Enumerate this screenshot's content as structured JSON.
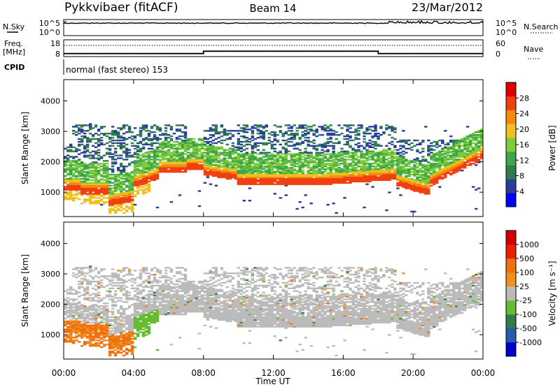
{
  "header": {
    "station": "Pykkvibaer (fitACF)",
    "beam": "Beam 14",
    "date": "23/Mar/2012"
  },
  "noise_panel": {
    "left_label": "N.Sky",
    "right_label": "N.Search",
    "left_ticks": [
      "10^5",
      "10^0"
    ],
    "right_ticks": [
      "10^5",
      "10^0"
    ]
  },
  "freq_panel": {
    "left_label_line1": "Freq.",
    "left_label_line2": "[MHz]",
    "right_label": "Nave",
    "left_ticks": [
      "18",
      "8"
    ],
    "right_ticks": [
      "60",
      "0"
    ],
    "freq_ylim": [
      8,
      18
    ],
    "nave_ylim": [
      0,
      60
    ],
    "freq_steps": [
      {
        "t0": 0,
        "t1": 8,
        "mhz": 9.8
      },
      {
        "t0": 8,
        "t1": 18,
        "mhz": 11.2
      },
      {
        "t0": 18,
        "t1": 24,
        "mhz": 9.8
      }
    ],
    "nave_level": 40
  },
  "cpid": {
    "label": "CPID",
    "text": "normal (fast stereo) 153"
  },
  "chart_data": [
    {
      "type": "heatmap",
      "name": "power",
      "xlabel": "",
      "ylabel": "Slant Range [km]",
      "xlim": [
        0,
        24
      ],
      "ylim": [
        200,
        4700
      ],
      "y_ticks": [
        "1000",
        "2000",
        "3000",
        "4000"
      ],
      "y_tick_values": [
        1000,
        2000,
        3000,
        4000
      ],
      "colorbar_label": "Power [dB]",
      "colorbar_ticks": [
        "28",
        "24",
        "20",
        "16",
        "12",
        "8",
        "4"
      ],
      "colorbar_tick_values": [
        28,
        24,
        20,
        16,
        12,
        8,
        4
      ],
      "colorbar_range": [
        0,
        32
      ],
      "colorbar_colors": [
        "#0000ff",
        "#2a3d9c",
        "#2f7d4f",
        "#3ea64a",
        "#7fcc3a",
        "#f0c020",
        "#f58a10",
        "#f04010",
        "#e00000"
      ]
    },
    {
      "type": "heatmap",
      "name": "velocity",
      "xlabel": "Time UT",
      "ylabel": "Slant Range [km]",
      "xlim": [
        0,
        24
      ],
      "ylim": [
        200,
        4700
      ],
      "x_ticks": [
        "00:00",
        "04:00",
        "08:00",
        "12:00",
        "16:00",
        "20:00",
        "00:00"
      ],
      "x_tick_values": [
        0,
        4,
        8,
        12,
        16,
        20,
        24
      ],
      "y_ticks": [
        "1000",
        "2000",
        "3000",
        "4000"
      ],
      "y_tick_values": [
        1000,
        2000,
        3000,
        4000
      ],
      "colorbar_label": "Velocity [m s⁻¹]",
      "colorbar_ticks": [
        "1000",
        "500",
        "100",
        "25",
        "-25",
        "-100",
        "-500",
        "-1000"
      ],
      "colorbar_colors": [
        "#0000cc",
        "#2a5aaa",
        "#2e7d4e",
        "#66bb33",
        "#bbbbbb",
        "#f09020",
        "#f07010",
        "#e82000",
        "#d00000"
      ]
    }
  ]
}
